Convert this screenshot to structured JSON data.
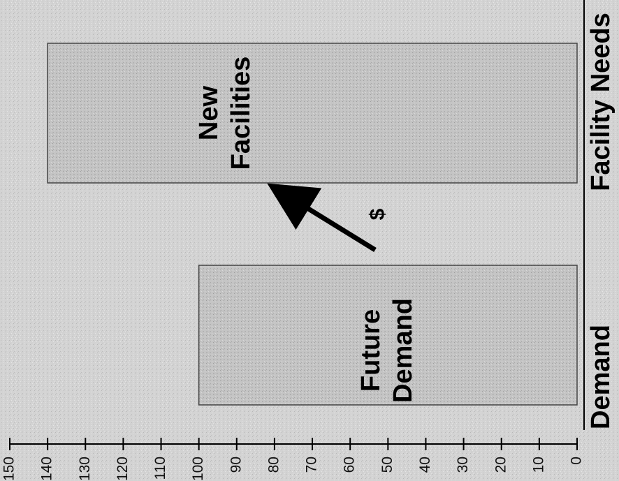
{
  "chart_data": {
    "type": "bar",
    "orientation": "rotated-90-clockwise",
    "categories": [
      "Demand",
      "Facility Needs"
    ],
    "values": [
      100,
      140
    ],
    "bar_labels": [
      [
        "Future",
        "Demand"
      ],
      [
        "New",
        "Facilities"
      ]
    ],
    "ylim": [
      0,
      150
    ],
    "yticks": [
      0,
      10,
      20,
      30,
      40,
      50,
      60,
      70,
      80,
      90,
      100,
      110,
      120,
      130,
      140,
      150
    ],
    "annotations": [
      {
        "text": "$",
        "arrow": "from Demand bar toward Facility Needs bar"
      }
    ],
    "grid": false,
    "legend": "none",
    "colors": {
      "background": "#d3d3d3",
      "bar_fill": "#c4c4c4",
      "bar_stroke": "#444444",
      "axis": "#000000"
    }
  }
}
